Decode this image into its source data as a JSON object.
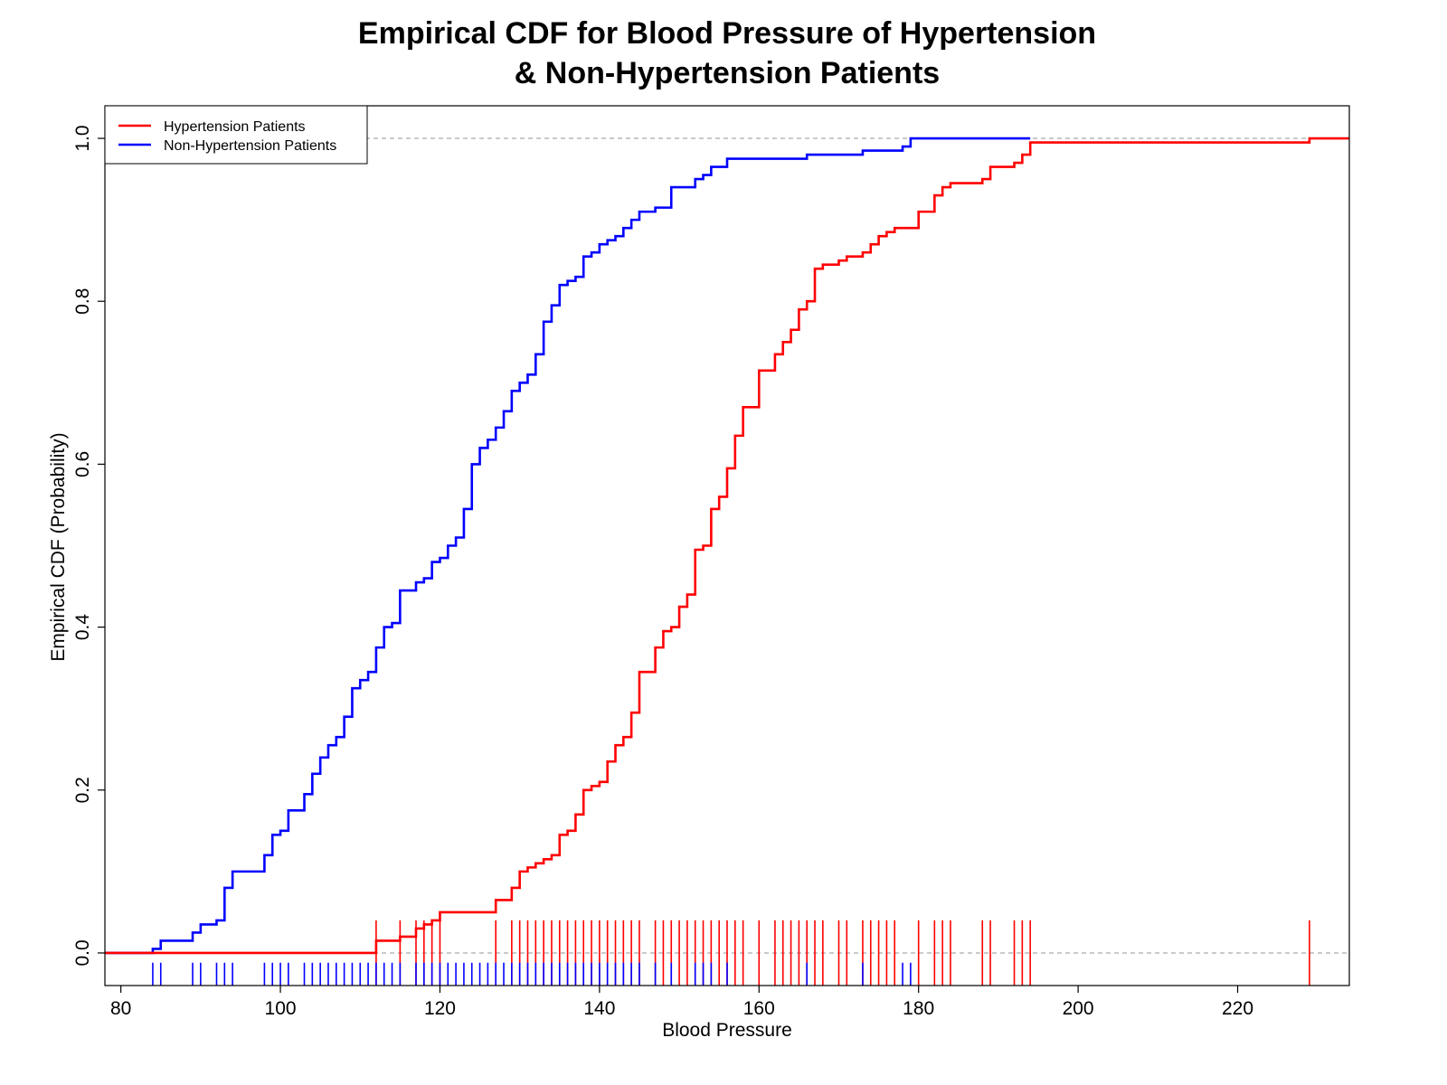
{
  "chart_data": {
    "type": "line",
    "subtype": "empirical-cdf-step",
    "title_line1": "Empirical CDF for Blood Pressure of Hypertension",
    "title_line2": "& Non-Hypertension Patients",
    "xlabel": "Blood Pressure",
    "ylabel": "Empirical CDF (Probability)",
    "xlim": [
      78,
      234
    ],
    "ylim": [
      -0.04,
      1.04
    ],
    "x_ticks": [
      80,
      100,
      120,
      140,
      160,
      180,
      200,
      220
    ],
    "y_ticks": [
      0.0,
      0.2,
      0.4,
      0.6,
      0.8,
      1.0
    ],
    "x_tick_labels": [
      "80",
      "100",
      "120",
      "140",
      "160",
      "180",
      "200",
      "220"
    ],
    "y_tick_labels": [
      "0.0",
      "0.2",
      "0.4",
      "0.6",
      "0.8",
      "1.0"
    ],
    "reference_lines": [
      0.0,
      1.0
    ],
    "legend_position": "top-left",
    "series": [
      {
        "name": "Hypertension Patients",
        "color": "#ff0000",
        "steps": [
          [
            78,
            0.0
          ],
          [
            112,
            0.015
          ],
          [
            115,
            0.02
          ],
          [
            117,
            0.03
          ],
          [
            118,
            0.035
          ],
          [
            119,
            0.04
          ],
          [
            120,
            0.05
          ],
          [
            127,
            0.065
          ],
          [
            129,
            0.08
          ],
          [
            130,
            0.1
          ],
          [
            131,
            0.105
          ],
          [
            132,
            0.11
          ],
          [
            133,
            0.115
          ],
          [
            134,
            0.12
          ],
          [
            135,
            0.145
          ],
          [
            136,
            0.15
          ],
          [
            137,
            0.17
          ],
          [
            138,
            0.2
          ],
          [
            139,
            0.205
          ],
          [
            140,
            0.21
          ],
          [
            141,
            0.235
          ],
          [
            142,
            0.255
          ],
          [
            143,
            0.265
          ],
          [
            144,
            0.295
          ],
          [
            145,
            0.345
          ],
          [
            147,
            0.375
          ],
          [
            148,
            0.395
          ],
          [
            149,
            0.4
          ],
          [
            150,
            0.425
          ],
          [
            151,
            0.44
          ],
          [
            152,
            0.495
          ],
          [
            153,
            0.5
          ],
          [
            154,
            0.545
          ],
          [
            155,
            0.56
          ],
          [
            156,
            0.595
          ],
          [
            157,
            0.635
          ],
          [
            158,
            0.67
          ],
          [
            160,
            0.715
          ],
          [
            162,
            0.735
          ],
          [
            163,
            0.75
          ],
          [
            164,
            0.765
          ],
          [
            165,
            0.79
          ],
          [
            166,
            0.8
          ],
          [
            167,
            0.84
          ],
          [
            168,
            0.845
          ],
          [
            170,
            0.85
          ],
          [
            171,
            0.855
          ],
          [
            173,
            0.86
          ],
          [
            174,
            0.87
          ],
          [
            175,
            0.88
          ],
          [
            176,
            0.885
          ],
          [
            177,
            0.89
          ],
          [
            180,
            0.91
          ],
          [
            182,
            0.93
          ],
          [
            183,
            0.94
          ],
          [
            184,
            0.945
          ],
          [
            188,
            0.95
          ],
          [
            189,
            0.965
          ],
          [
            192,
            0.97
          ],
          [
            193,
            0.98
          ],
          [
            194,
            0.995
          ],
          [
            229,
            1.0
          ],
          [
            234,
            1.0
          ]
        ],
        "rug": [
          112,
          115,
          117,
          118,
          119,
          120,
          127,
          129,
          130,
          131,
          132,
          133,
          134,
          135,
          136,
          137,
          138,
          139,
          140,
          141,
          142,
          143,
          144,
          145,
          147,
          148,
          149,
          150,
          151,
          152,
          153,
          154,
          155,
          156,
          157,
          158,
          160,
          162,
          163,
          164,
          165,
          166,
          167,
          168,
          170,
          171,
          173,
          174,
          175,
          176,
          177,
          180,
          182,
          183,
          184,
          188,
          189,
          192,
          193,
          194,
          229
        ]
      },
      {
        "name": "Non-Hypertension Patients",
        "color": "#0000ff",
        "steps": [
          [
            78,
            0.0
          ],
          [
            84,
            0.005
          ],
          [
            85,
            0.015
          ],
          [
            89,
            0.025
          ],
          [
            90,
            0.035
          ],
          [
            92,
            0.04
          ],
          [
            93,
            0.08
          ],
          [
            94,
            0.1
          ],
          [
            98,
            0.12
          ],
          [
            99,
            0.145
          ],
          [
            100,
            0.15
          ],
          [
            101,
            0.175
          ],
          [
            103,
            0.195
          ],
          [
            104,
            0.22
          ],
          [
            105,
            0.24
          ],
          [
            106,
            0.255
          ],
          [
            107,
            0.265
          ],
          [
            108,
            0.29
          ],
          [
            109,
            0.325
          ],
          [
            110,
            0.335
          ],
          [
            111,
            0.345
          ],
          [
            112,
            0.375
          ],
          [
            113,
            0.4
          ],
          [
            114,
            0.405
          ],
          [
            115,
            0.445
          ],
          [
            117,
            0.455
          ],
          [
            118,
            0.46
          ],
          [
            119,
            0.48
          ],
          [
            120,
            0.485
          ],
          [
            121,
            0.5
          ],
          [
            122,
            0.51
          ],
          [
            123,
            0.545
          ],
          [
            124,
            0.6
          ],
          [
            125,
            0.62
          ],
          [
            126,
            0.63
          ],
          [
            127,
            0.645
          ],
          [
            128,
            0.665
          ],
          [
            129,
            0.69
          ],
          [
            130,
            0.7
          ],
          [
            131,
            0.71
          ],
          [
            132,
            0.735
          ],
          [
            133,
            0.775
          ],
          [
            134,
            0.795
          ],
          [
            135,
            0.82
          ],
          [
            136,
            0.825
          ],
          [
            137,
            0.83
          ],
          [
            138,
            0.855
          ],
          [
            139,
            0.86
          ],
          [
            140,
            0.87
          ],
          [
            141,
            0.875
          ],
          [
            142,
            0.88
          ],
          [
            143,
            0.89
          ],
          [
            144,
            0.9
          ],
          [
            145,
            0.91
          ],
          [
            147,
            0.915
          ],
          [
            149,
            0.94
          ],
          [
            152,
            0.95
          ],
          [
            153,
            0.955
          ],
          [
            154,
            0.965
          ],
          [
            156,
            0.975
          ],
          [
            166,
            0.98
          ],
          [
            173,
            0.985
          ],
          [
            178,
            0.99
          ],
          [
            179,
            1.0
          ],
          [
            194,
            1.0
          ]
        ],
        "rug": [
          84,
          85,
          89,
          90,
          92,
          93,
          94,
          98,
          99,
          100,
          101,
          103,
          104,
          105,
          106,
          107,
          108,
          109,
          110,
          111,
          112,
          113,
          114,
          115,
          117,
          118,
          119,
          120,
          121,
          122,
          123,
          124,
          125,
          126,
          127,
          128,
          129,
          130,
          131,
          132,
          133,
          134,
          135,
          136,
          137,
          138,
          139,
          140,
          141,
          142,
          143,
          144,
          145,
          147,
          149,
          152,
          153,
          154,
          156,
          166,
          173,
          178,
          179
        ]
      }
    ]
  }
}
